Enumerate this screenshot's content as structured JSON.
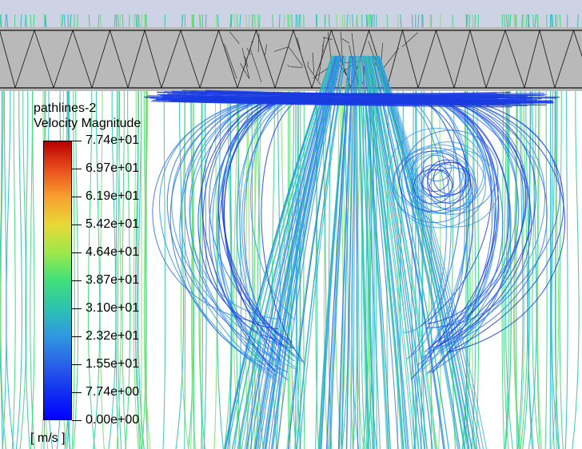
{
  "legend": {
    "title": "pathlines-2",
    "subtitle": "Velocity Magnitude",
    "units": "[ m/s ]",
    "labels": [
      "7.74e+01",
      "6.97e+01",
      "6.19e+01",
      "5.42e+01",
      "4.64e+01",
      "3.87e+01",
      "3.10e+01",
      "2.32e+01",
      "1.55e+01",
      "7.74e+00",
      "0.00e+00"
    ],
    "gradient_colors": [
      "#b80000",
      "#e84e1b",
      "#f8a030",
      "#e8d838",
      "#9ee84a",
      "#3fe07a",
      "#2ec3b0",
      "#2f98e0",
      "#2a62e8",
      "#1230f0",
      "#0000ff"
    ]
  },
  "scene": {
    "background_color": "#ffffff",
    "top_band_color": "#cdd3e4",
    "plate_color": "#b9b9b9",
    "mesh_edge_color": "#111111",
    "pathline_colors": [
      "#1a3be0",
      "#2d6cf0",
      "#2f95e8",
      "#27b7c8",
      "#2ac9a0",
      "#3ad77a",
      "#7ee06a"
    ]
  }
}
